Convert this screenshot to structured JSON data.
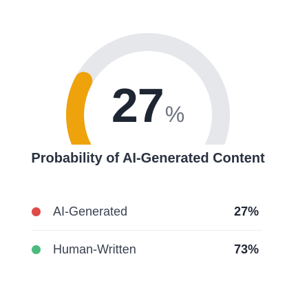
{
  "gauge": {
    "value": 27,
    "max": 100,
    "value_text": "27",
    "unit": "%",
    "fill_color": "#eea20c",
    "track_color": "#e5e7eb"
  },
  "caption": "Probability of AI-Generated Content",
  "legend": [
    {
      "label": "AI-Generated",
      "value": "27%",
      "color": "#e04a48"
    },
    {
      "label": "Human-Written",
      "value": "73%",
      "color": "#4cbb7f"
    }
  ]
}
